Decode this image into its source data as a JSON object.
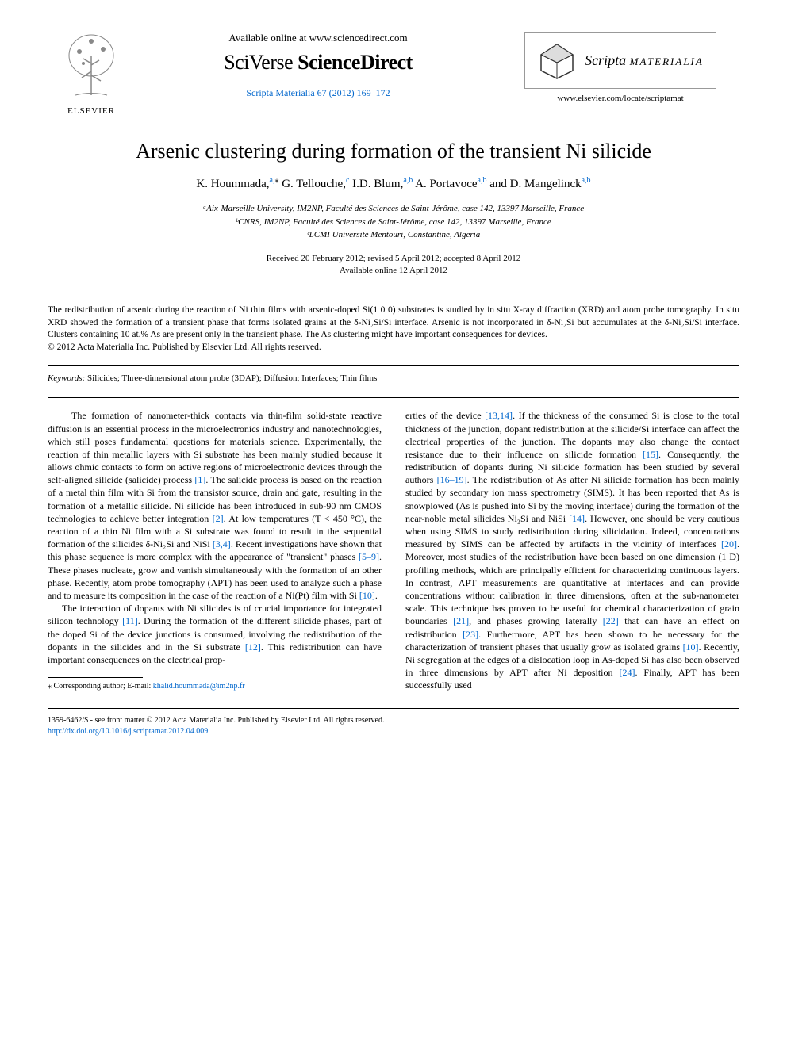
{
  "header": {
    "elsevier_label": "ELSEVIER",
    "available_online": "Available online at www.sciencedirect.com",
    "platform_prefix": "SciVerse",
    "platform_name": "ScienceDirect",
    "citation": "Scripta Materialia 67 (2012) 169–172",
    "journal_name_1": "Scripta",
    "journal_name_2": "MATERIALIA",
    "journal_url": "www.elsevier.com/locate/scriptamat"
  },
  "title": "Arsenic clustering during formation of the transient Ni silicide",
  "authors_html": "K. Hoummada,<sup>a,</sup><sup class='sup-black'>⁎</sup> G. Tellouche,<sup>c</sup> I.D. Blum,<sup>a,b</sup> A. Portavoce<sup>a,b</sup> and D. Mangelinck<sup>a,b</sup>",
  "affiliations": [
    "ᵃAix-Marseille University, IM2NP, Faculté des Sciences de Saint-Jérôme, case 142, 13397 Marseille, France",
    "ᵇCNRS, IM2NP, Faculté des Sciences de Saint-Jérôme, case 142, 13397 Marseille, France",
    "ᶜLCMI Université Mentouri, Constantine, Algeria"
  ],
  "dates_line1": "Received 20 February 2012; revised 5 April 2012; accepted 8 April 2012",
  "dates_line2": "Available online 12 April 2012",
  "abstract": "The redistribution of arsenic during the reaction of Ni thin films with arsenic-doped Si(1 0 0) substrates is studied by in situ X-ray diffraction (XRD) and atom probe tomography. In situ XRD showed the formation of a transient phase that forms isolated grains at the δ-Ni₂Si/Si interface. Arsenic is not incorporated in δ-Ni₂Si but accumulates at the δ-Ni₂Si/Si interface. Clusters containing 10 at.% As are present only in the transient phase. The As clustering might have important consequences for devices.",
  "copyright_line": "© 2012 Acta Materialia Inc. Published by Elsevier Ltd. All rights reserved.",
  "keywords_label": "Keywords:",
  "keywords": "Silicides; Three-dimensional atom probe (3DAP); Diffusion; Interfaces; Thin films",
  "body": {
    "col1_p1": "The formation of nanometer-thick contacts via thin-film solid-state reactive diffusion is an essential process in the microelectronics industry and nanotechnologies, which still poses fundamental questions for materials science. Experimentally, the reaction of thin metallic layers with Si substrate has been mainly studied because it allows ohmic contacts to form on active regions of microelectronic devices through the self-aligned silicide (salicide) process [1]. The salicide process is based on the reaction of a metal thin film with Si from the transistor source, drain and gate, resulting in the formation of a metallic silicide. Ni silicide has been introduced in sub-90 nm CMOS technologies to achieve better integration [2]. At low temperatures (T < 450 °C), the reaction of a thin Ni film with a Si substrate was found to result in the sequential formation of the silicides δ-Ni₂Si and NiSi [3,4]. Recent investigations have shown that this phase sequence is more complex with the appearance of \"transient\" phases [5–9]. These phases nucleate, grow and vanish simultaneously with the formation of an other phase. Recently, atom probe tomography (APT) has been used to analyze such a phase and to measure its composition in the case of the reaction of a Ni(Pt) film with Si [10].",
    "col1_p2": "The interaction of dopants with Ni silicides is of crucial importance for integrated silicon technology [11]. During the formation of the different silicide phases, part of the doped Si of the device junctions is consumed, involving the redistribution of the dopants in the silicides and in the Si substrate [12]. This redistribution can have important consequences on the electrical prop-",
    "col2_p1": "erties of the device [13,14]. If the thickness of the consumed Si is close to the total thickness of the junction, dopant redistribution at the silicide/Si interface can affect the electrical properties of the junction. The dopants may also change the contact resistance due to their influence on silicide formation [15]. Consequently, the redistribution of dopants during Ni silicide formation has been studied by several authors [16–19]. The redistribution of As after Ni silicide formation has been mainly studied by secondary ion mass spectrometry (SIMS). It has been reported that As is snowplowed (As is pushed into Si by the moving interface) during the formation of the near-noble metal silicides Ni₂Si and NiSi [14]. However, one should be very cautious when using SIMS to study redistribution during silicidation. Indeed, concentrations measured by SIMS can be affected by artifacts in the vicinity of interfaces [20]. Moreover, most studies of the redistribution have been based on one dimension (1 D) profiling methods, which are principally efficient for characterizing continuous layers. In contrast, APT measurements are quantitative at interfaces and can provide concentrations without calibration in three dimensions, often at the sub-nanometer scale. This technique has proven to be useful for chemical characterization of grain boundaries [21], and phases growing laterally [22] that can have an effect on redistribution [23]. Furthermore, APT has been shown to be necessary for the characterization of transient phases that usually grow as isolated grains [10]. Recently, Ni segregation at the edges of a dislocation loop in As-doped Si has also been observed in three dimensions by APT after Ni deposition [24]. Finally, APT has been successfully used"
  },
  "footnote_label": "⁎ Corresponding author; E-mail:",
  "footnote_email": "khalid.hoummada@im2np.fr",
  "bottom": {
    "rights": "1359-6462/$ - see front matter © 2012 Acta Materialia Inc. Published by Elsevier Ltd. All rights reserved.",
    "doi": "http://dx.doi.org/10.1016/j.scriptamat.2012.04.009"
  },
  "refs_col1": [
    "[1]",
    "[2]",
    "[3,4]",
    "[5–9]",
    "[10]",
    "[11]",
    "[12]"
  ],
  "refs_col2": [
    "[13,14]",
    "[15]",
    "[16–19]",
    "[14]",
    "[20]",
    "[21]",
    "[22]",
    "[23]",
    "[10]",
    "[24]"
  ]
}
